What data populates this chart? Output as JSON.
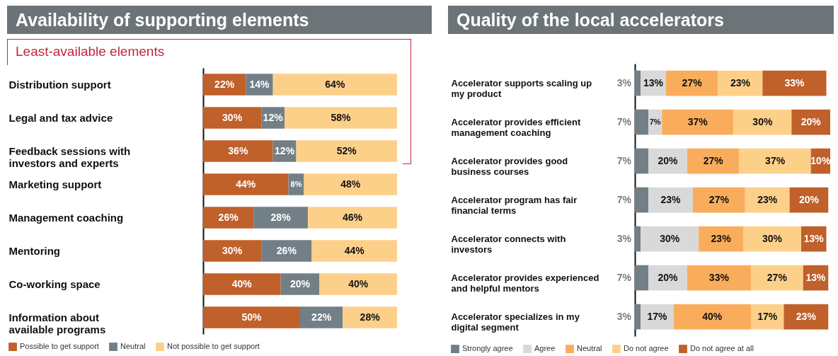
{
  "chart_data": [
    {
      "type": "bar",
      "title": "Availability of supporting elements",
      "orientation": "horizontal",
      "stacked": true,
      "legend": "bottom",
      "annotations": [
        "Least-available elements"
      ],
      "categories": [
        "Distribution support",
        "Legal and tax advice",
        "Feedback sessions with investors and experts",
        "Marketing support",
        "Management coaching",
        "Mentoring",
        "Co-working space",
        "Information about available programs"
      ],
      "series": [
        {
          "name": "Possible to get support",
          "color": "#c0602a",
          "values": [
            22,
            30,
            36,
            44,
            26,
            30,
            40,
            50
          ],
          "value_labels": [
            "22%",
            "30%",
            "36%",
            "44%",
            "26%",
            "30%",
            "40%",
            "50%"
          ]
        },
        {
          "name": "Neutral",
          "color": "#737f87",
          "values": [
            14,
            12,
            12,
            8,
            28,
            26,
            20,
            22
          ],
          "value_labels": [
            "14%",
            "12%",
            "12%",
            "8%",
            "28%",
            "26%",
            "20%",
            "22%"
          ]
        },
        {
          "name": "Not possible to get support",
          "color": "#fdd08a",
          "values": [
            64,
            58,
            52,
            48,
            46,
            44,
            40,
            28
          ],
          "value_labels": [
            "64%",
            "58%",
            "52%",
            "48%",
            "46%",
            "44%",
            "40%",
            "28%"
          ]
        }
      ]
    },
    {
      "type": "bar",
      "title": "Quality of the local accelerators",
      "orientation": "horizontal",
      "stacked": true,
      "legend": "bottom",
      "categories": [
        "Accelerator supports scaling up my product",
        "Accelerator provides efficient management coaching",
        "Accelerator provides good business courses",
        "Accelerator program has fair financial terms",
        "Accelerator connects  with investors",
        "Accelerator provides experienced and helpful mentors",
        "Accelerator specializes in my digital segment"
      ],
      "series": [
        {
          "name": "Strongly agree",
          "color": "#737f87",
          "values": [
            3,
            7,
            7,
            7,
            3,
            7,
            3
          ],
          "value_labels": [
            "3%",
            "7%",
            "7%",
            "7%",
            "3%",
            "7%",
            "3%"
          ]
        },
        {
          "name": "Agree",
          "color": "#d9d9d9",
          "values": [
            13,
            7,
            20,
            23,
            30,
            20,
            17
          ],
          "value_labels": [
            "13%",
            "7%",
            "20%",
            "23%",
            "30%",
            "20%",
            "17%"
          ]
        },
        {
          "name": "Neutral",
          "color": "#f9ad5c",
          "values": [
            27,
            37,
            27,
            27,
            23,
            33,
            40
          ],
          "value_labels": [
            "27%",
            "37%",
            "27%",
            "27%",
            "23%",
            "33%",
            "40%"
          ]
        },
        {
          "name": "Do not agree",
          "color": "#fdd08a",
          "values": [
            23,
            30,
            37,
            23,
            30,
            27,
            17
          ],
          "value_labels": [
            "23%",
            "30%",
            "37%",
            "23%",
            "30%",
            "27%",
            "17%"
          ]
        },
        {
          "name": "Do not agree at all",
          "color": "#c0602a",
          "values": [
            33,
            20,
            10,
            20,
            13,
            13,
            23
          ],
          "value_labels": [
            "33%",
            "20%",
            "10%",
            "20%",
            "13%",
            "13%",
            "23%"
          ]
        }
      ]
    }
  ]
}
